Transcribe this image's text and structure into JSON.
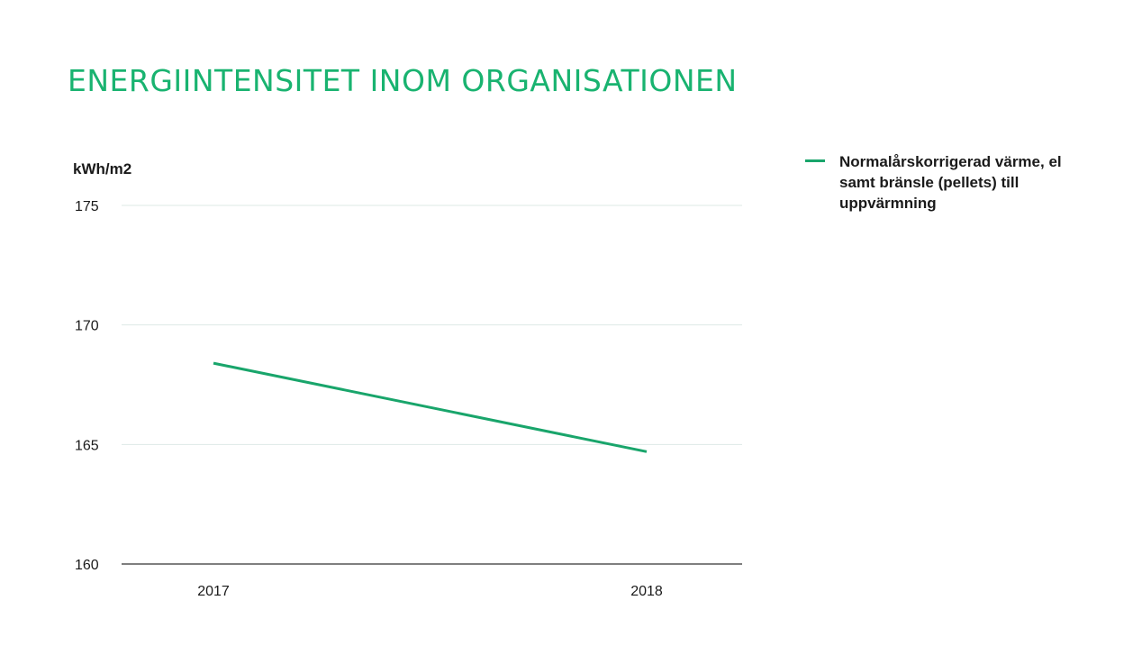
{
  "title": "ENERGIINTENSITET INOM ORGANISATIONEN",
  "colors": {
    "title": "#19b370",
    "series": "#19a56b",
    "grid": "#dde8e6",
    "axis": "#333333"
  },
  "chart_data": {
    "type": "line",
    "title": "ENERGIINTENSITET INOM ORGANISATIONEN",
    "xlabel": "",
    "ylabel": "kWh/m2",
    "categories": [
      "2017",
      "2018"
    ],
    "series": [
      {
        "name": "Normalårskorrigerad värme, el samt bränsle (pellets) till uppvärmning",
        "values": [
          168.4,
          164.7
        ]
      }
    ],
    "ylim": [
      160,
      175
    ],
    "yticks": [
      "160",
      "165",
      "170",
      "175"
    ],
    "grid": true,
    "legend_position": "right"
  }
}
